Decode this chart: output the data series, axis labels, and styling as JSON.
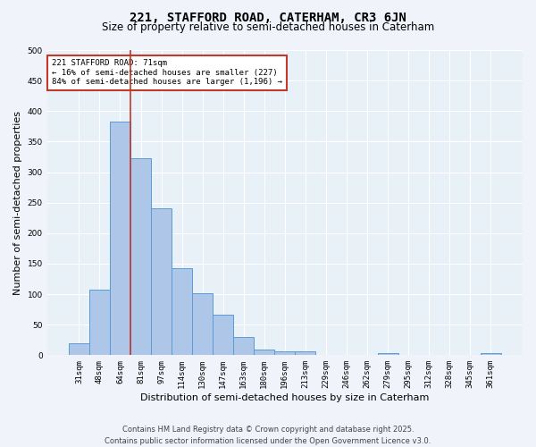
{
  "title1": "221, STAFFORD ROAD, CATERHAM, CR3 6JN",
  "title2": "Size of property relative to semi-detached houses in Caterham",
  "xlabel": "Distribution of semi-detached houses by size in Caterham",
  "ylabel": "Number of semi-detached properties",
  "categories": [
    "31sqm",
    "48sqm",
    "64sqm",
    "81sqm",
    "97sqm",
    "114sqm",
    "130sqm",
    "147sqm",
    "163sqm",
    "180sqm",
    "196sqm",
    "213sqm",
    "229sqm",
    "246sqm",
    "262sqm",
    "279sqm",
    "295sqm",
    "312sqm",
    "328sqm",
    "345sqm",
    "361sqm"
  ],
  "values": [
    20,
    107,
    383,
    323,
    241,
    143,
    101,
    67,
    30,
    10,
    6,
    6,
    0,
    0,
    0,
    3,
    0,
    0,
    0,
    0,
    3
  ],
  "bar_color": "#aec6e8",
  "bar_edge_color": "#5b9bd5",
  "vline_x": 2.5,
  "vline_color": "#c0392b",
  "annotation_text": "221 STAFFORD ROAD: 71sqm\n← 16% of semi-detached houses are smaller (227)\n84% of semi-detached houses are larger (1,196) →",
  "annotation_box_color": "#ffffff",
  "annotation_box_edge": "#c0392b",
  "ylim": [
    0,
    500
  ],
  "yticks": [
    0,
    50,
    100,
    150,
    200,
    250,
    300,
    350,
    400,
    450,
    500
  ],
  "footer": "Contains HM Land Registry data © Crown copyright and database right 2025.\nContains public sector information licensed under the Open Government Licence v3.0.",
  "background_color": "#f0f4fa",
  "plot_background": "#e8f0f8",
  "grid_color": "#ffffff",
  "title_fontsize": 10,
  "subtitle_fontsize": 8.5,
  "tick_fontsize": 6.5,
  "label_fontsize": 8,
  "footer_fontsize": 6,
  "annotation_fontsize": 6.5
}
